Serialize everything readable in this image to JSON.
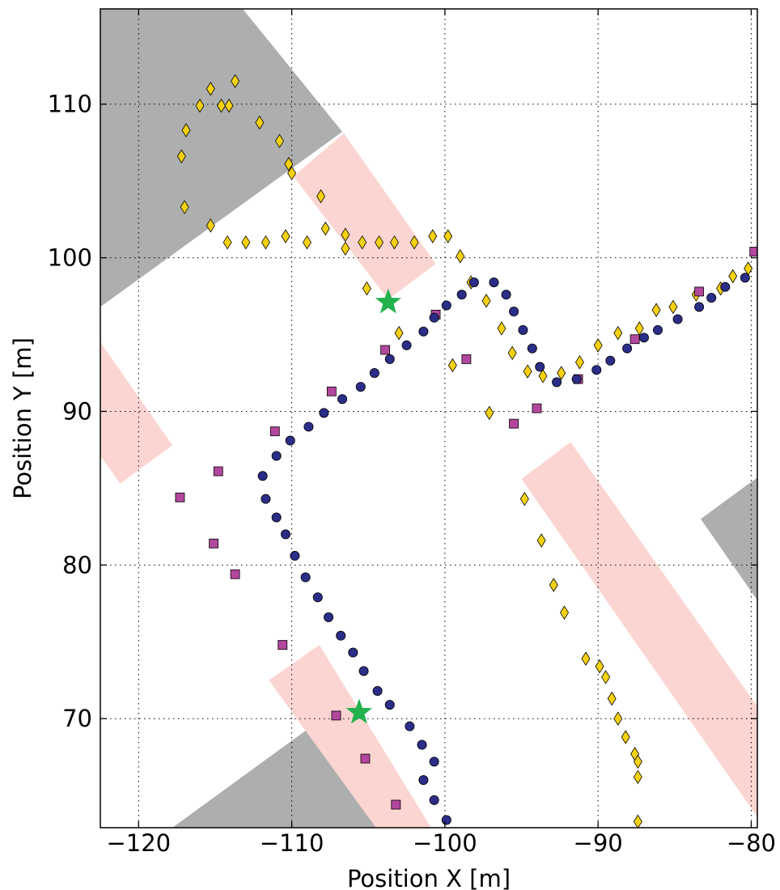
{
  "chart_data": {
    "type": "scatter",
    "title": "",
    "xlabel": "Position X [m]",
    "ylabel": "Position Y [m]",
    "xlim": [
      -122.5,
      -79.6
    ],
    "ylim": [
      62.9,
      116.2
    ],
    "xticks": [
      -120,
      -110,
      -100,
      -90,
      -80
    ],
    "yticks": [
      70,
      80,
      90,
      100,
      110
    ],
    "grid": true,
    "grid_style": "dotted",
    "colors": {
      "gray_region": "#adaeae",
      "pink_region": "#fbd5d1",
      "circle": "#2b2e88",
      "square": "#b2479d",
      "diamond": "#f5d112",
      "star": "#22b14c"
    },
    "regions": [
      {
        "kind": "gray",
        "polygon": [
          [
            -122.5,
            116.2
          ],
          [
            -113.2,
            116.2
          ],
          [
            -106.7,
            108.2
          ],
          [
            -122.5,
            96.8
          ]
        ]
      },
      {
        "kind": "gray",
        "polygon": [
          [
            -117.8,
            62.9
          ],
          [
            -104.0,
            62.9
          ],
          [
            -108.3,
            69.8
          ]
        ]
      },
      {
        "kind": "gray",
        "polygon": [
          [
            -83.3,
            83.0
          ],
          [
            -79.6,
            85.7
          ],
          [
            -79.6,
            77.7
          ]
        ]
      },
      {
        "kind": "pink",
        "polygon": [
          [
            -109.9,
            105.3
          ],
          [
            -106.6,
            108.1
          ],
          [
            -100.6,
            99.6
          ],
          [
            -103.7,
            97.3
          ]
        ]
      },
      {
        "kind": "pink",
        "polygon": [
          [
            -122.5,
            94.5
          ],
          [
            -117.8,
            87.8
          ],
          [
            -121.2,
            85.3
          ],
          [
            -122.5,
            87.1
          ]
        ]
      },
      {
        "kind": "pink",
        "polygon": [
          [
            -111.5,
            72.5
          ],
          [
            -108.2,
            74.8
          ],
          [
            -100.9,
            62.9
          ],
          [
            -104.5,
            62.9
          ]
        ]
      },
      {
        "kind": "pink",
        "polygon": [
          [
            -95.0,
            85.6
          ],
          [
            -91.8,
            88.0
          ],
          [
            -79.6,
            70.8
          ],
          [
            -79.6,
            63.6
          ]
        ]
      }
    ],
    "series": [
      {
        "marker": "circle",
        "points": [
          [
            -99.9,
            63.4
          ],
          [
            -100.7,
            64.7
          ],
          [
            -101.4,
            66.0
          ],
          [
            -100.7,
            67.2
          ],
          [
            -101.5,
            68.3
          ],
          [
            -102.3,
            69.5
          ],
          [
            -103.6,
            70.9
          ],
          [
            -104.4,
            71.8
          ],
          [
            -105.3,
            73.1
          ],
          [
            -106.0,
            74.3
          ],
          [
            -106.8,
            75.4
          ],
          [
            -107.6,
            76.6
          ],
          [
            -108.3,
            77.9
          ],
          [
            -109.1,
            79.2
          ],
          [
            -109.8,
            80.6
          ],
          [
            -110.4,
            82.0
          ],
          [
            -111.0,
            83.1
          ],
          [
            -111.7,
            84.3
          ],
          [
            -111.9,
            85.8
          ],
          [
            -111.0,
            87.1
          ],
          [
            -110.1,
            88.1
          ],
          [
            -108.9,
            89.0
          ],
          [
            -107.9,
            89.9
          ],
          [
            -106.7,
            90.8
          ],
          [
            -105.5,
            91.6
          ],
          [
            -104.6,
            92.5
          ],
          [
            -103.6,
            93.4
          ],
          [
            -102.5,
            94.3
          ],
          [
            -101.4,
            95.2
          ],
          [
            -100.7,
            96.1
          ],
          [
            -99.9,
            96.9
          ],
          [
            -98.9,
            97.6
          ],
          [
            -98.1,
            98.4
          ],
          [
            -96.8,
            98.4
          ],
          [
            -96.0,
            97.6
          ],
          [
            -95.5,
            96.5
          ],
          [
            -94.9,
            95.3
          ],
          [
            -94.3,
            94.1
          ],
          [
            -93.8,
            92.9
          ],
          [
            -92.7,
            91.9
          ],
          [
            -91.4,
            92.1
          ],
          [
            -90.1,
            92.7
          ],
          [
            -89.2,
            93.3
          ],
          [
            -88.1,
            94.1
          ],
          [
            -87.0,
            94.8
          ],
          [
            -86.1,
            95.3
          ],
          [
            -84.8,
            96.0
          ],
          [
            -83.4,
            96.8
          ],
          [
            -82.6,
            97.4
          ],
          [
            -81.7,
            98.1
          ],
          [
            -80.4,
            98.7
          ]
        ]
      },
      {
        "marker": "square",
        "points": [
          [
            -117.3,
            84.4
          ],
          [
            -115.1,
            81.4
          ],
          [
            -114.8,
            86.1
          ],
          [
            -113.7,
            79.4
          ],
          [
            -111.1,
            88.7
          ],
          [
            -110.6,
            74.8
          ],
          [
            -107.4,
            91.3
          ],
          [
            -107.1,
            70.2
          ],
          [
            -105.2,
            67.4
          ],
          [
            -103.9,
            94.0
          ],
          [
            -103.2,
            64.4
          ],
          [
            -100.6,
            96.3
          ],
          [
            -98.6,
            93.4
          ],
          [
            -95.5,
            89.2
          ],
          [
            -94.0,
            90.2
          ],
          [
            -91.3,
            92.1
          ],
          [
            -87.6,
            94.7
          ],
          [
            -83.4,
            97.8
          ],
          [
            -79.8,
            100.4
          ]
        ]
      },
      {
        "marker": "diamond",
        "points": [
          [
            -117.2,
            106.6
          ],
          [
            -116.9,
            108.3
          ],
          [
            -116.0,
            109.9
          ],
          [
            -115.3,
            111.0
          ],
          [
            -114.6,
            109.9
          ],
          [
            -114.1,
            109.9
          ],
          [
            -113.7,
            111.5
          ],
          [
            -112.1,
            108.8
          ],
          [
            -110.8,
            107.6
          ],
          [
            -110.2,
            106.1
          ],
          [
            -110.0,
            105.5
          ],
          [
            -108.1,
            104.0
          ],
          [
            -107.8,
            101.9
          ],
          [
            -106.5,
            101.5
          ],
          [
            -106.5,
            100.6
          ],
          [
            -105.4,
            101.0
          ],
          [
            -104.3,
            101.0
          ],
          [
            -103.3,
            101.0
          ],
          [
            -102.0,
            101.0
          ],
          [
            -100.8,
            101.4
          ],
          [
            -99.8,
            101.4
          ],
          [
            -99.0,
            100.1
          ],
          [
            -98.3,
            98.4
          ],
          [
            -97.3,
            97.2
          ],
          [
            -96.3,
            95.4
          ],
          [
            -95.6,
            93.8
          ],
          [
            -94.6,
            92.6
          ],
          [
            -93.6,
            92.3
          ],
          [
            -92.4,
            92.5
          ],
          [
            -91.2,
            93.2
          ],
          [
            -90.0,
            94.3
          ],
          [
            -88.7,
            95.1
          ],
          [
            -87.3,
            95.4
          ],
          [
            -86.2,
            96.6
          ],
          [
            -85.1,
            96.8
          ],
          [
            -83.6,
            97.6
          ],
          [
            -82.0,
            98.0
          ],
          [
            -81.2,
            98.8
          ],
          [
            -80.2,
            99.3
          ],
          [
            -105.1,
            98.0
          ],
          [
            -103.0,
            95.1
          ],
          [
            -99.5,
            93.0
          ],
          [
            -97.1,
            89.9
          ],
          [
            -94.8,
            84.3
          ],
          [
            -93.7,
            81.6
          ],
          [
            -92.9,
            78.7
          ],
          [
            -92.2,
            76.9
          ],
          [
            -90.8,
            73.9
          ],
          [
            -89.9,
            73.4
          ],
          [
            -89.5,
            72.7
          ],
          [
            -89.1,
            71.3
          ],
          [
            -88.7,
            70.0
          ],
          [
            -88.2,
            68.8
          ],
          [
            -87.6,
            67.7
          ],
          [
            -87.4,
            67.2
          ],
          [
            -87.4,
            66.2
          ],
          [
            -87.4,
            63.3
          ],
          [
            -117.0,
            103.3
          ],
          [
            -115.3,
            102.1
          ],
          [
            -114.2,
            101.0
          ],
          [
            -113.0,
            101.0
          ],
          [
            -111.7,
            101.0
          ],
          [
            -110.4,
            101.4
          ],
          [
            -109.0,
            101.0
          ]
        ]
      },
      {
        "marker": "star",
        "points": [
          [
            -103.7,
            97.1
          ],
          [
            -105.6,
            70.4
          ]
        ]
      }
    ]
  }
}
